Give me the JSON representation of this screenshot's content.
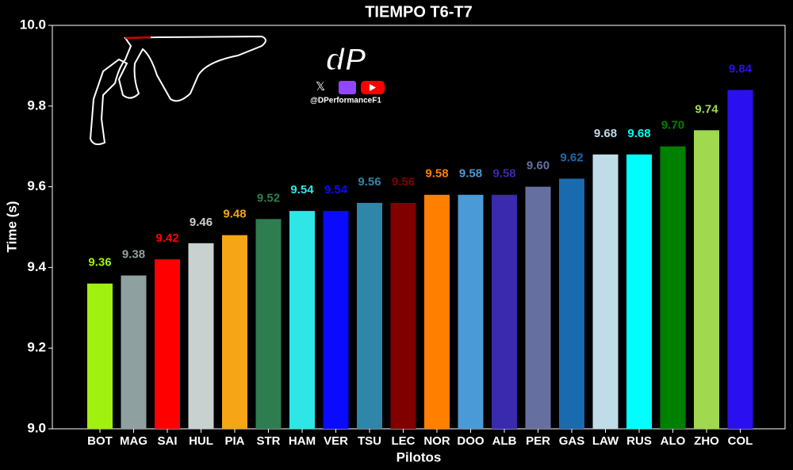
{
  "chart_data": {
    "type": "bar",
    "title": "TIEMPO T6-T7",
    "x_label": "Pilotos",
    "y_label": "Time (s)",
    "watermark": "@DPerformanceF1",
    "logo": "dP",
    "categories": [
      "BOT",
      "MAG",
      "SAI",
      "HUL",
      "PIA",
      "STR",
      "HAM",
      "VER",
      "TSU",
      "LEC",
      "NOR",
      "DOO",
      "ALB",
      "PER",
      "GAS",
      "LAW",
      "RUS",
      "ALO",
      "ZHO",
      "COL"
    ],
    "values": [
      9.36,
      9.38,
      9.42,
      9.46,
      9.48,
      9.52,
      9.54,
      9.54,
      9.56,
      9.56,
      9.58,
      9.58,
      9.58,
      9.6,
      9.62,
      9.68,
      9.68,
      9.7,
      9.74,
      9.84
    ],
    "value_labels": [
      "9.36",
      "9.38",
      "9.42",
      "9.46",
      "9.48",
      "9.52",
      "9.54",
      "9.54",
      "9.56",
      "9.56",
      "9.58",
      "9.58",
      "9.58",
      "9.60",
      "9.62",
      "9.68",
      "9.68",
      "9.70",
      "9.74",
      "9.84"
    ],
    "colors": [
      "#a0f010",
      "#8fa0a0",
      "#ff0000",
      "#c8d0d0",
      "#f5a515",
      "#2e7d50",
      "#2ee6e6",
      "#0a0aff",
      "#2e86a8",
      "#800000",
      "#ff8000",
      "#4a9ad8",
      "#3a2aad",
      "#6670a0",
      "#1a6ab0",
      "#c0dce8",
      "#00ffff",
      "#008000",
      "#a0d850",
      "#2a10f0"
    ],
    "ylim": [
      9.0,
      10.0
    ],
    "yticks": [
      {
        "value": 9.0,
        "label": "9.0"
      },
      9.2,
      9.4,
      9.6,
      9.8,
      {
        "value": 10.0,
        "label": "10.0"
      }
    ]
  }
}
